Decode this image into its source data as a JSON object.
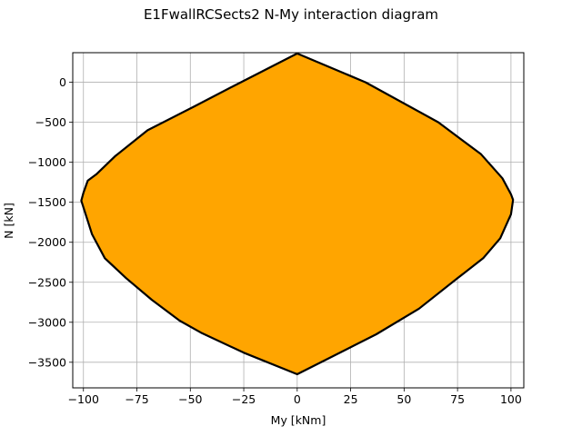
{
  "chart_data": {
    "type": "area",
    "title": "E1FwallRCSects2 N-My interaction diagram",
    "xlabel": "My [kNm]",
    "ylabel": "N [kN]",
    "xlim": [
      -105,
      106
    ],
    "ylim": [
      -3820,
      370
    ],
    "xticks": [
      -100,
      -75,
      -50,
      -25,
      0,
      25,
      50,
      75,
      100
    ],
    "yticks": [
      0,
      -500,
      -1000,
      -1500,
      -2000,
      -2500,
      -3000,
      -3500
    ],
    "xtick_labels": [
      "−100",
      "−75",
      "−50",
      "−25",
      "0",
      "25",
      "50",
      "75",
      "100"
    ],
    "ytick_labels": [
      "0",
      "−500",
      "−1000",
      "−1500",
      "−2000",
      "−2500",
      "−3000",
      "−3500"
    ],
    "grid": true,
    "fill_color": "#ffa500",
    "line_color": "#000000",
    "series": [
      {
        "x": [
          0,
          32,
          66,
          86,
          96,
          100,
          101,
          100,
          95,
          87,
          75,
          57,
          37,
          0,
          -25,
          -45,
          -55,
          -68,
          -80,
          -90,
          -96,
          -101,
          -100,
          -98,
          -94,
          -85,
          -70,
          -48,
          -30,
          0
        ],
        "y": [
          360,
          0,
          -500,
          -900,
          -1200,
          -1400,
          -1470,
          -1650,
          -1950,
          -2200,
          -2450,
          -2830,
          -3150,
          -3650,
          -3380,
          -3130,
          -2980,
          -2720,
          -2450,
          -2200,
          -1900,
          -1480,
          -1380,
          -1230,
          -1150,
          -920,
          -600,
          -300,
          -50,
          360
        ]
      }
    ]
  }
}
